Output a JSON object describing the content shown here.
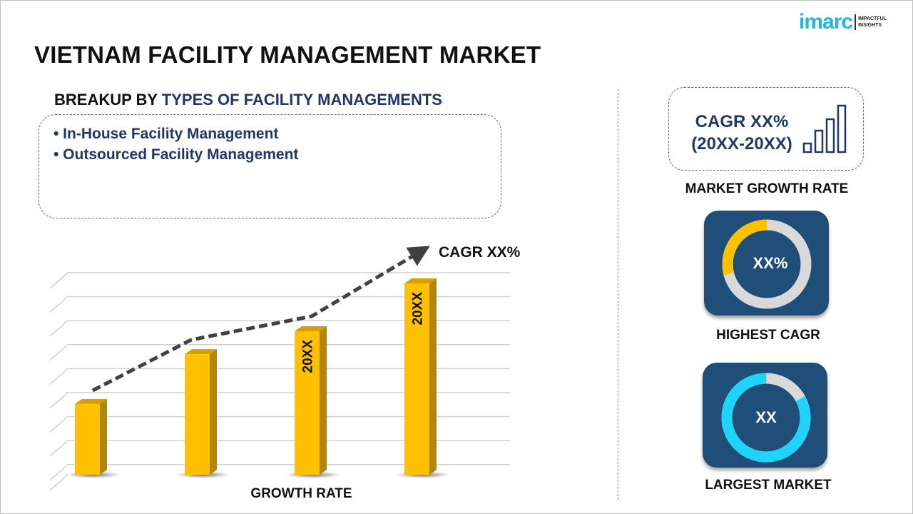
{
  "header": {
    "title": "VIETNAM FACILITY MANAGEMENT MARKET",
    "logo_text": "imarc",
    "logo_tagline": "IMPACTFUL INSIGHTS"
  },
  "breakup": {
    "prefix": "BREAKUP BY ",
    "highlight": "TYPES OF FACILITY MANAGEMENTS",
    "segments": [
      "• In-House Facility Management",
      "• Outsourced Facility Management"
    ]
  },
  "market_growth": {
    "cagr": "CAGR XX%",
    "period": "(20XX-20XX)",
    "caption": "MARKET GROWTH RATE",
    "icon": "bar-chart-icon"
  },
  "highest_cagr": {
    "value": "XX%",
    "caption": "HIGHEST CAGR",
    "fill_fraction": 0.29,
    "color": "#ffc000"
  },
  "largest_market": {
    "value": "XX",
    "caption": "LARGEST MARKET",
    "fill_fraction": 0.83,
    "color": "#1ed4fb"
  },
  "colors": {
    "navy": "#1f3864",
    "tile": "#1f4e79",
    "bar": "#ffc000",
    "bar_side": "#b38600",
    "logo": "#1fb6e8"
  },
  "chart_data": {
    "type": "bar",
    "categories": [
      "",
      "",
      "",
      ""
    ],
    "values": [
      0.37,
      0.63,
      0.75,
      1.0
    ],
    "bar_labels": [
      "",
      "",
      "20XX",
      "20XX"
    ],
    "trend_label": "CAGR XX%",
    "xlabel": "GROWTH RATE",
    "ylabel": "",
    "grid": true
  }
}
